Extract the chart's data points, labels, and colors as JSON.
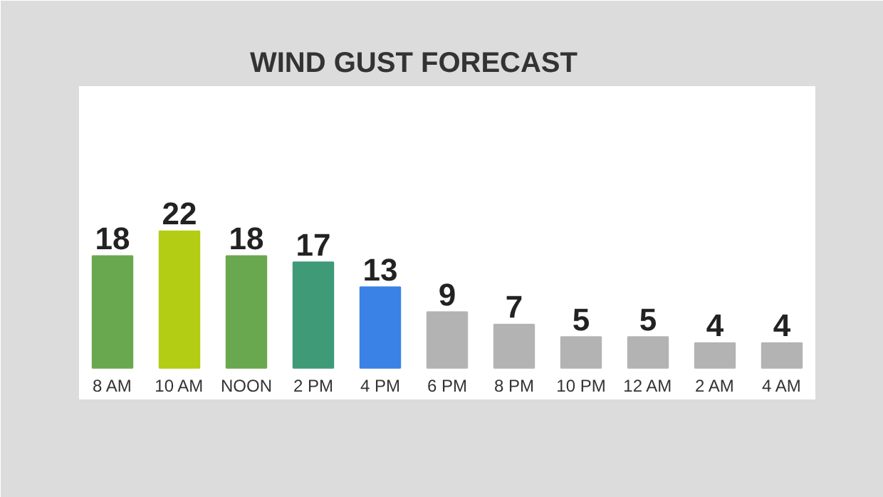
{
  "chart_data": {
    "type": "bar",
    "title": "WIND GUST FORECAST",
    "categories": [
      "8 AM",
      "10 AM",
      "NOON",
      "2 PM",
      "4 PM",
      "6 PM",
      "8 PM",
      "10 PM",
      "12 AM",
      "2 AM",
      "4 AM"
    ],
    "values": [
      18,
      22,
      18,
      17,
      13,
      9,
      7,
      5,
      5,
      4,
      4
    ],
    "colors": [
      "#6aa84f",
      "#b3cc14",
      "#6aa84f",
      "#3f9a78",
      "#3b82e6",
      "#b3b3b3",
      "#b3b3b3",
      "#b3b3b3",
      "#b3b3b3",
      "#b3b3b3",
      "#b3b3b3"
    ],
    "data_labels": true
  }
}
